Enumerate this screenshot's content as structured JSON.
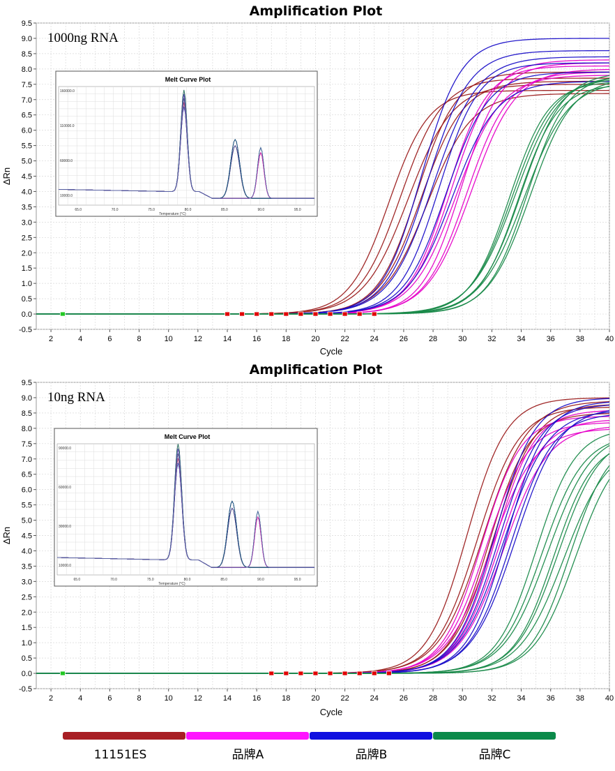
{
  "chart_data": [
    {
      "type": "line",
      "title": "Amplification Plot",
      "panel_label": "1000ng RNA",
      "xlabel": "Cycle",
      "ylabel": "ΔRn",
      "xlim": [
        1,
        40
      ],
      "ylim": [
        -0.5,
        9.5
      ],
      "x_ticks": [
        2,
        4,
        6,
        8,
        10,
        12,
        14,
        16,
        18,
        20,
        22,
        24,
        26,
        28,
        30,
        32,
        34,
        36,
        38,
        40
      ],
      "y_ticks": [
        -0.5,
        0.0,
        0.5,
        1.0,
        1.5,
        2.0,
        2.5,
        3.0,
        3.5,
        4.0,
        4.5,
        5.0,
        5.5,
        6.0,
        6.5,
        7.0,
        7.5,
        8.0,
        8.5,
        9.0,
        9.5
      ],
      "grid": true,
      "series": [
        {
          "group": "11151ES",
          "color": "#9b1c1c",
          "midpoints": [
            25.0,
            25.8,
            26.3,
            26.9,
            27.2,
            27.6
          ],
          "plateaus": [
            7.3,
            7.7,
            7.5,
            7.9,
            7.6,
            7.2
          ]
        },
        {
          "group": "品牌A",
          "color": "#e600c8",
          "midpoints": [
            29.0,
            29.3,
            29.6,
            29.9,
            30.3,
            30.6
          ],
          "plateaus": [
            8.1,
            8.3,
            7.8,
            8.2,
            7.9,
            8.0
          ]
        },
        {
          "group": "品牌B",
          "color": "#1a0fc8",
          "midpoints": [
            27.2,
            27.6,
            28.0,
            28.4,
            28.9,
            29.3
          ],
          "plateaus": [
            9.0,
            8.6,
            8.4,
            8.2,
            7.9,
            7.6
          ]
        },
        {
          "group": "品牌C",
          "color": "#1a8a4a",
          "midpoints": [
            33.2,
            33.4,
            33.6,
            33.8,
            34.0,
            34.2,
            34.4,
            34.6
          ],
          "plateaus": [
            7.6,
            7.7,
            7.8,
            7.5,
            7.9,
            7.6,
            7.8,
            7.7
          ]
        }
      ],
      "inset": {
        "title": "Melt Curve Plot",
        "xlabel": "Temperature (°C)",
        "x_ticks": [
          "65.0",
          "70.0",
          "75.0",
          "80.0",
          "85.0",
          "90.0",
          "95.0"
        ],
        "y_ticks": [
          "160000.0",
          "110000.0",
          "60000.0",
          "10000.0"
        ]
      }
    },
    {
      "type": "line",
      "title": "Amplification Plot",
      "panel_label": "10ng RNA",
      "xlabel": "Cycle",
      "ylabel": "ΔRn",
      "xlim": [
        1,
        40
      ],
      "ylim": [
        -0.5,
        9.5
      ],
      "x_ticks": [
        2,
        4,
        6,
        8,
        10,
        12,
        14,
        16,
        18,
        20,
        22,
        24,
        26,
        28,
        30,
        32,
        34,
        36,
        38,
        40
      ],
      "y_ticks": [
        -0.5,
        0.0,
        0.5,
        1.0,
        1.5,
        2.0,
        2.5,
        3.0,
        3.5,
        4.0,
        4.5,
        5.0,
        5.5,
        6.0,
        6.5,
        7.0,
        7.5,
        8.0,
        8.5,
        9.0,
        9.5
      ],
      "grid": true,
      "series": [
        {
          "group": "11151ES",
          "color": "#9b1c1c",
          "midpoints": [
            30.3,
            31.0,
            31.4,
            31.8,
            32.1
          ],
          "plateaus": [
            9.0,
            8.7,
            8.9,
            8.5,
            8.8
          ]
        },
        {
          "group": "品牌A",
          "color": "#e600c8",
          "midpoints": [
            31.3,
            31.6,
            31.9,
            32.2,
            32.5,
            32.8
          ],
          "plateaus": [
            8.4,
            8.2,
            8.0,
            8.6,
            8.3,
            8.1
          ]
        },
        {
          "group": "品牌B",
          "color": "#1a0fc8",
          "midpoints": [
            32.2,
            32.5,
            32.8,
            33.0,
            33.3,
            33.6
          ],
          "plateaus": [
            9.0,
            8.8,
            8.6,
            8.9,
            8.5,
            8.7
          ]
        },
        {
          "group": "品牌C",
          "color": "#1a8a4a",
          "midpoints": [
            35.0,
            35.4,
            35.8,
            36.2,
            36.5,
            36.9,
            37.3,
            37.7
          ],
          "plateaus": [
            8.0,
            7.8,
            7.9,
            7.6,
            7.8,
            7.5,
            7.7,
            7.6
          ]
        }
      ],
      "inset": {
        "title": "Melt Curve Plot",
        "xlabel": "Temperature (°C)",
        "x_ticks": [
          "65.0",
          "70.0",
          "75.0",
          "80.0",
          "85.0",
          "90.0",
          "95.0"
        ],
        "y_ticks": [
          "90000.0",
          "60000.0",
          "30000.0",
          "10000.0"
        ]
      }
    }
  ],
  "legend": [
    {
      "label": "11151ES",
      "color": "#a81f24"
    },
    {
      "label": "品牌A",
      "color": "#ff14ff"
    },
    {
      "label": "品牌B",
      "color": "#1010e0"
    },
    {
      "label": "品牌C",
      "color": "#0b8a4a"
    }
  ]
}
